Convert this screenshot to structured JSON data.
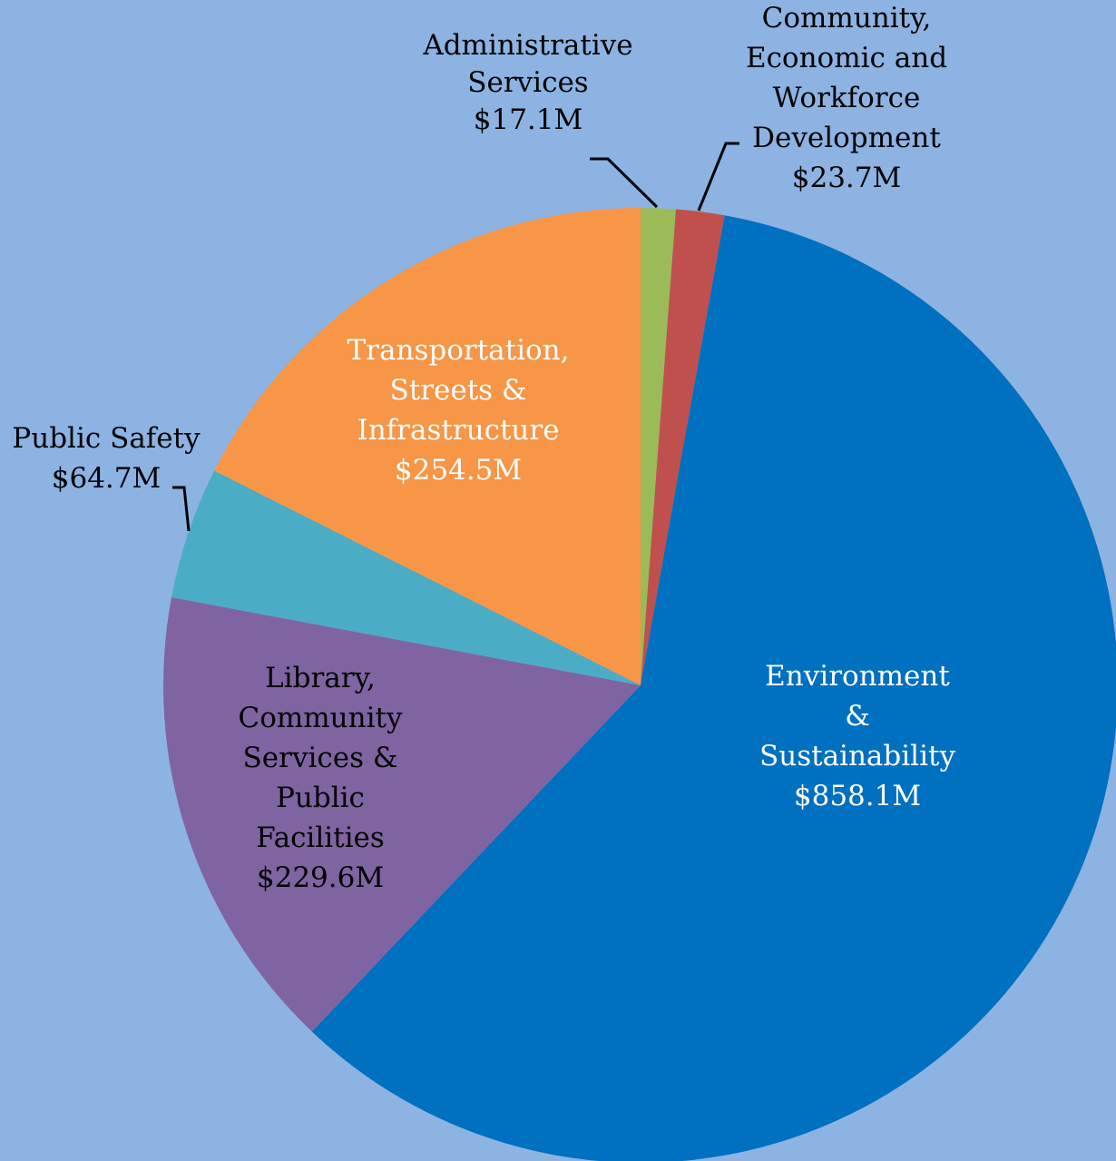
{
  "chart_data": {
    "type": "pie",
    "title": "",
    "slices": [
      {
        "label": [
          "Administrative",
          "Services"
        ],
        "value_label": "$17.1M",
        "value": 17.1,
        "color": "#9bbb59",
        "text_style": "dark"
      },
      {
        "label": [
          "Community,",
          "Economic and",
          "Workforce",
          "Development"
        ],
        "value_label": "$23.7M",
        "value": 23.7,
        "color": "#c0504d",
        "text_style": "dark"
      },
      {
        "label": [
          "Environment",
          "&",
          "Sustainability"
        ],
        "value_label": "$858.1M",
        "value": 858.1,
        "color": "#0070c0",
        "text_style": "light"
      },
      {
        "label": [
          "Library,",
          "Community",
          "Services &",
          "Public",
          "Facilities"
        ],
        "value_label": "$229.6M",
        "value": 229.6,
        "color": "#8064a2",
        "text_style": "dark"
      },
      {
        "label": [
          "Public Safety"
        ],
        "value_label": "$64.7M",
        "value": 64.7,
        "color": "#4bacc6",
        "text_style": "dark"
      },
      {
        "label": [
          "Transportation,",
          "Streets &",
          "Infrastructure"
        ],
        "value_label": "$254.5M",
        "value": 254.5,
        "color": "#f79646",
        "text_style": "light"
      }
    ],
    "legend": "none"
  }
}
